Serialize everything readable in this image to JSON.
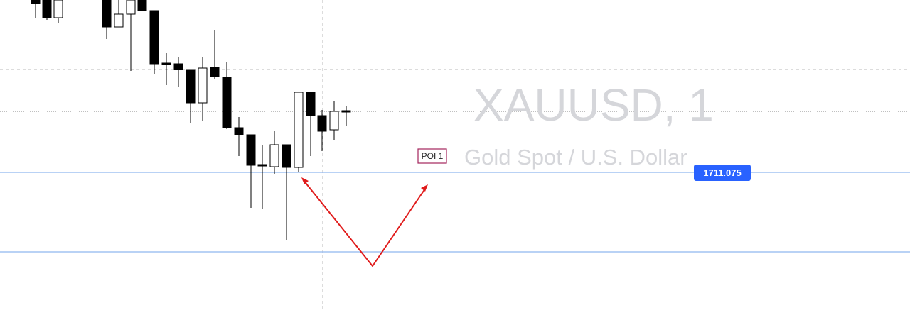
{
  "watermark": {
    "symbol": "XAUUSD, 1",
    "description": "Gold Spot / U.S. Dollar"
  },
  "annotation": {
    "label": "POI 1"
  },
  "price_label": {
    "text": "1711.075"
  }
}
